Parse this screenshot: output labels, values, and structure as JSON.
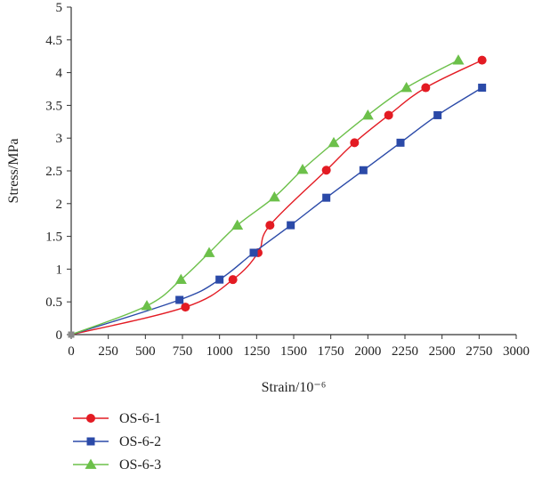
{
  "chart_data": {
    "type": "line",
    "title": "",
    "xlabel": "Strain/10⁻⁶",
    "ylabel": "Stress/MPa",
    "xlim": [
      0,
      3000
    ],
    "ylim": [
      0,
      5
    ],
    "xticks": [
      0,
      250,
      500,
      750,
      1000,
      1250,
      1500,
      1750,
      2000,
      2250,
      2500,
      2750,
      3000
    ],
    "yticks": [
      0,
      0.5,
      1,
      1.5,
      2,
      2.5,
      3,
      3.5,
      4,
      4.5,
      5
    ],
    "grid": false,
    "legend_position": "bottom-left",
    "series": [
      {
        "name": "OS-6-1",
        "color": "#e31b23",
        "marker": "circle",
        "points": [
          [
            0,
            0
          ],
          [
            770,
            0.42
          ],
          [
            1090,
            0.84
          ],
          [
            1260,
            1.25
          ],
          [
            1340,
            1.67
          ],
          [
            1720,
            2.51
          ],
          [
            1910,
            2.93
          ],
          [
            2140,
            3.35
          ],
          [
            2390,
            3.77
          ],
          [
            2770,
            4.19
          ]
        ]
      },
      {
        "name": "OS-6-2",
        "color": "#2b4aa8",
        "marker": "square",
        "points": [
          [
            0,
            0
          ],
          [
            730,
            0.53
          ],
          [
            1000,
            0.84
          ],
          [
            1230,
            1.25
          ],
          [
            1480,
            1.67
          ],
          [
            1720,
            2.09
          ],
          [
            1970,
            2.51
          ],
          [
            2220,
            2.93
          ],
          [
            2470,
            3.35
          ],
          [
            2770,
            3.77
          ]
        ]
      },
      {
        "name": "OS-6-3",
        "color": "#6cc04a",
        "marker": "triangle",
        "points": [
          [
            0,
            0
          ],
          [
            510,
            0.44
          ],
          [
            740,
            0.84
          ],
          [
            930,
            1.25
          ],
          [
            1120,
            1.67
          ],
          [
            1370,
            2.1
          ],
          [
            1560,
            2.52
          ],
          [
            1770,
            2.93
          ],
          [
            2000,
            3.35
          ],
          [
            2260,
            3.77
          ],
          [
            2610,
            4.19
          ]
        ]
      }
    ]
  }
}
